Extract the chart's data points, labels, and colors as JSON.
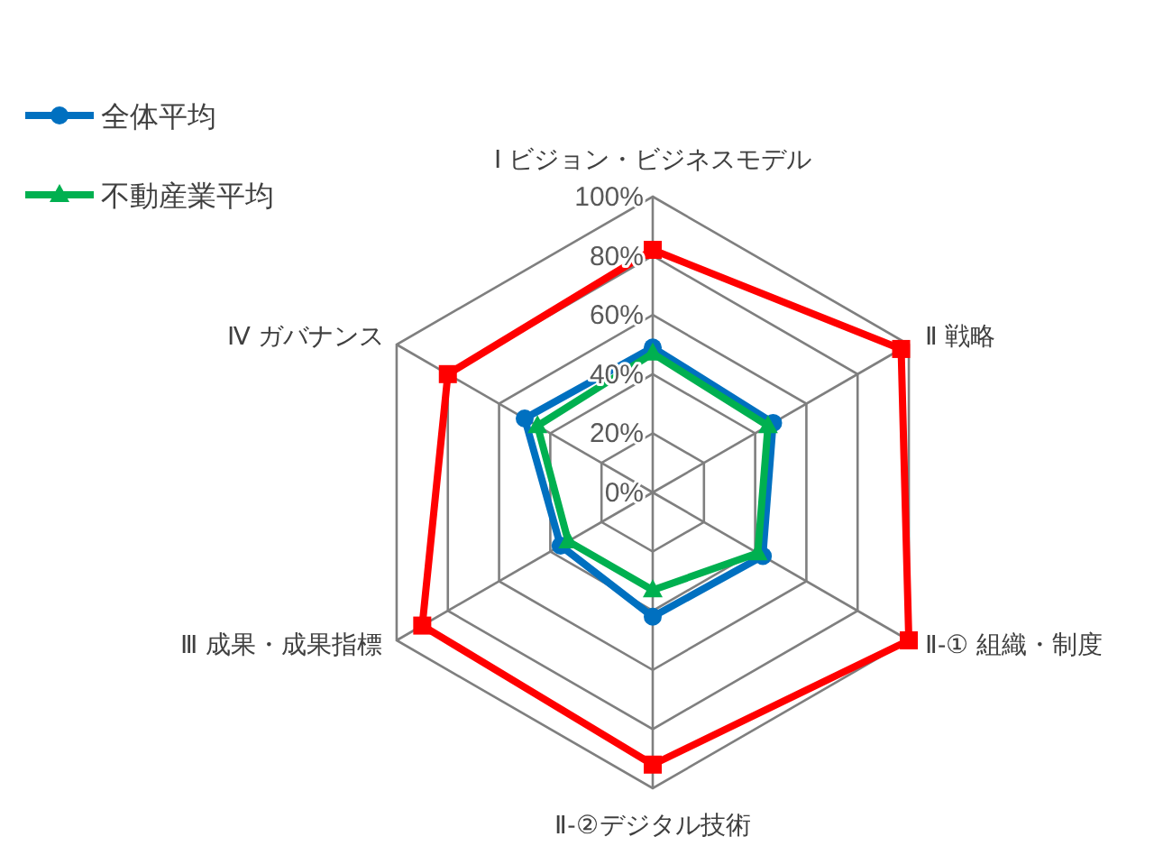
{
  "chart_data": {
    "type": "radar",
    "categories": [
      "Ⅰ ビジョン・ビジネスモデル",
      "Ⅱ 戦略",
      "Ⅱ-① 組織・制度",
      "Ⅱ-②デジタル技術",
      "Ⅲ 成果・成果指標",
      "Ⅳ ガバナンス"
    ],
    "ylim": [
      0,
      100
    ],
    "yticks": [
      {
        "value": 0,
        "label": "0%"
      },
      {
        "value": 20,
        "label": "20%"
      },
      {
        "value": 40,
        "label": "40%"
      },
      {
        "value": 60,
        "label": "60%"
      },
      {
        "value": 80,
        "label": "80%"
      },
      {
        "value": 100,
        "label": "100%"
      }
    ],
    "grid": true,
    "legend": "top left",
    "series": [
      {
        "color": "#ff0000",
        "marker": "square",
        "values": [
          82,
          97,
          100,
          92,
          90,
          80
        ]
      },
      {
        "name": "全体平均",
        "color": "#0070c0",
        "marker": "circle",
        "values": [
          49,
          47,
          43,
          42,
          36,
          50
        ]
      },
      {
        "name": "不動産業平均",
        "color": "#00b050",
        "marker": "triangle",
        "values": [
          47,
          45,
          41,
          33,
          33,
          45
        ]
      }
    ]
  }
}
